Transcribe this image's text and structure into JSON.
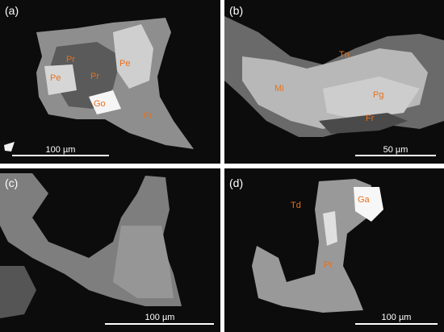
{
  "panels": [
    {
      "label": "(a)",
      "scale": "100 µm",
      "minerals": [
        "Pr",
        "Pe",
        "Pe",
        "Pr",
        "Go",
        "Fr"
      ]
    },
    {
      "label": "(b)",
      "scale": "50 µm",
      "minerals": [
        "Tn",
        "Mi",
        "Pg",
        "Fr"
      ]
    },
    {
      "label": "(c)",
      "scale": "100 µm",
      "minerals": []
    },
    {
      "label": "(d)",
      "scale": "100 µm",
      "minerals": [
        "Td",
        "Ga",
        "Pr"
      ]
    }
  ]
}
